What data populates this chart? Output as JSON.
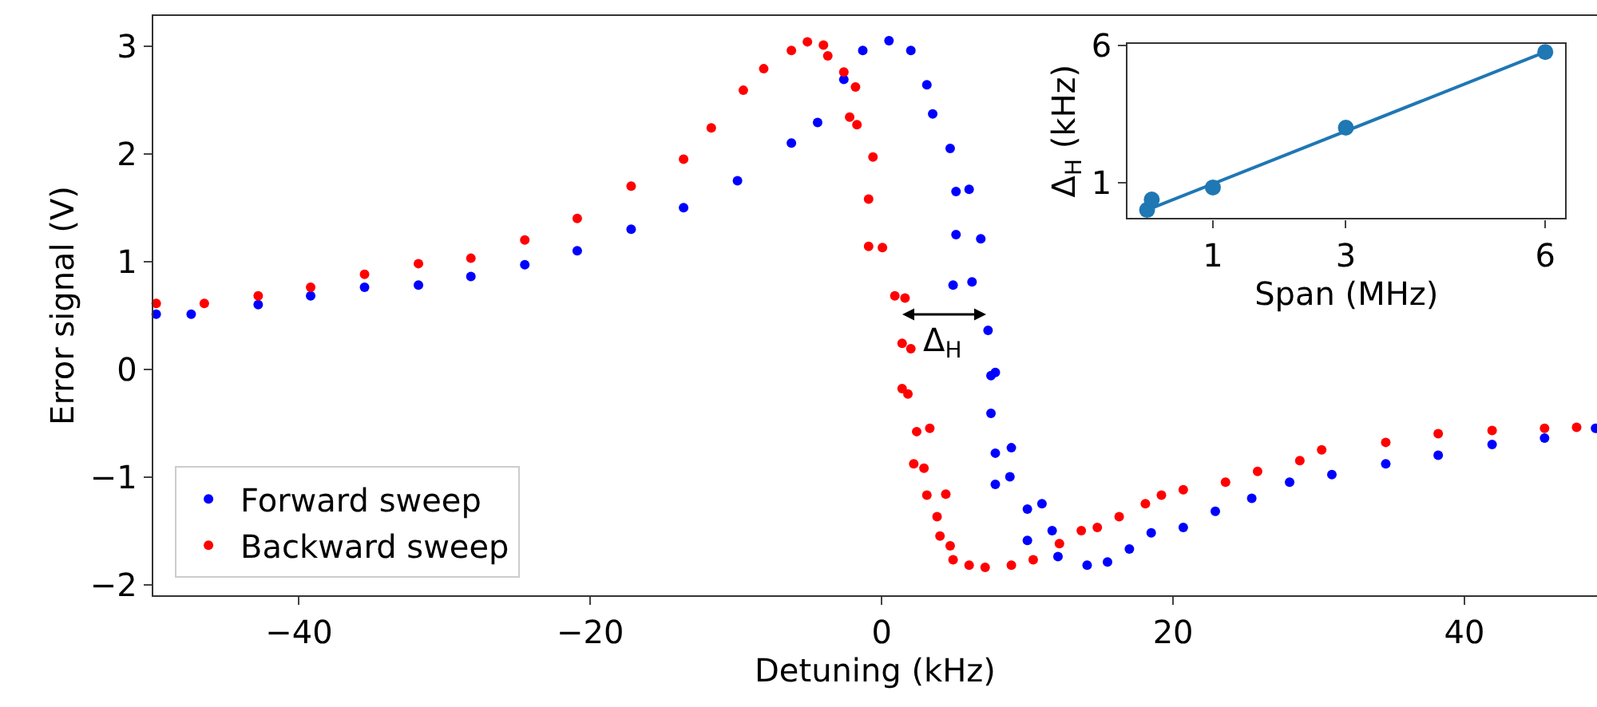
{
  "chart_data": [
    {
      "type": "scatter",
      "xlabel": "Detuning (kHz)",
      "ylabel": "Error signal (V)",
      "xlim": [
        -50,
        49.1
      ],
      "ylim": [
        -2.1,
        3.28
      ],
      "xticks": [
        -40,
        -20,
        0,
        20,
        40
      ],
      "yticks": [
        -2,
        -1,
        0,
        1,
        2,
        3
      ],
      "legend": "bottom left",
      "marker": "circle",
      "annotations": [
        "Δ$_{H}$"
      ],
      "series": [
        {
          "name": "Forward sweep",
          "color": "#0000ff",
          "x": [
            -49.8,
            -47.4,
            -42.8,
            -39.2,
            -35.5,
            -31.8,
            -28.2,
            -24.5,
            -20.9,
            -17.2,
            -13.6,
            -9.9,
            -6.2,
            -4.4,
            -2.6,
            -1.3,
            0.5,
            2.0,
            3.1,
            3.5,
            4.7,
            5.1,
            6.0,
            5.1,
            6.8,
            4.9,
            6.2,
            7.3,
            7.5,
            7.8,
            7.5,
            7.8,
            8.9,
            7.8,
            8.8,
            10.0,
            11.0,
            10.0,
            11.7,
            12.1,
            14.1,
            15.5,
            17.0,
            18.5,
            20.7,
            22.9,
            25.4,
            28.0,
            30.9,
            34.6,
            38.2,
            41.9,
            45.5,
            49.0
          ],
          "values": [
            0.51,
            0.51,
            0.6,
            0.68,
            0.76,
            0.78,
            0.86,
            0.97,
            1.1,
            1.3,
            1.5,
            1.75,
            2.1,
            2.29,
            2.69,
            2.96,
            3.05,
            2.96,
            2.64,
            2.37,
            2.05,
            1.65,
            1.67,
            1.25,
            1.21,
            0.78,
            0.81,
            0.36,
            -0.06,
            -0.03,
            -0.41,
            -0.78,
            -0.73,
            -1.07,
            -1.0,
            -1.3,
            -1.25,
            -1.59,
            -1.5,
            -1.74,
            -1.82,
            -1.79,
            -1.67,
            -1.52,
            -1.47,
            -1.32,
            -1.2,
            -1.05,
            -0.98,
            -0.88,
            -0.8,
            -0.7,
            -0.64,
            -0.55
          ]
        },
        {
          "name": "Backward sweep",
          "color": "#ff0000",
          "x": [
            -49.8,
            -46.5,
            -42.8,
            -39.2,
            -35.5,
            -31.8,
            -28.2,
            -24.5,
            -20.9,
            -17.2,
            -13.6,
            -11.7,
            -9.5,
            -8.1,
            -6.2,
            -5.1,
            -4.0,
            -3.7,
            -2.6,
            -1.8,
            -2.2,
            -1.7,
            -0.6,
            -0.9,
            -0.9,
            0.05,
            0.9,
            1.6,
            1.4,
            2.0,
            1.4,
            1.8,
            2.4,
            3.3,
            2.2,
            2.9,
            3.1,
            4.4,
            3.8,
            4.0,
            4.7,
            4.9,
            6.0,
            7.1,
            8.9,
            10.4,
            12.2,
            13.7,
            14.8,
            16.3,
            18.1,
            19.2,
            20.7,
            23.6,
            25.8,
            28.7,
            30.2,
            34.6,
            38.2,
            41.9,
            45.5,
            47.7
          ],
          "values": [
            0.61,
            0.61,
            0.68,
            0.76,
            0.88,
            0.98,
            1.03,
            1.2,
            1.4,
            1.7,
            1.95,
            2.24,
            2.59,
            2.79,
            2.96,
            3.04,
            3.01,
            2.91,
            2.76,
            2.62,
            2.34,
            2.27,
            1.97,
            1.58,
            1.14,
            1.13,
            0.68,
            0.66,
            0.24,
            0.19,
            -0.18,
            -0.23,
            -0.58,
            -0.55,
            -0.88,
            -0.92,
            -1.17,
            -1.16,
            -1.37,
            -1.55,
            -1.64,
            -1.77,
            -1.82,
            -1.84,
            -1.82,
            -1.77,
            -1.62,
            -1.5,
            -1.47,
            -1.37,
            -1.25,
            -1.17,
            -1.12,
            -1.05,
            -0.95,
            -0.85,
            -0.75,
            -0.68,
            -0.6,
            -0.57,
            -0.55,
            -0.54
          ]
        }
      ]
    },
    {
      "type": "scatter",
      "xlabel": "Span (MHz)",
      "ylabel": "Δ$_{H}$ (kHz)",
      "xlim": [
        -0.28,
        6.3
      ],
      "ylim": [
        -0.3,
        6.06
      ],
      "xticks": [
        1,
        3,
        6
      ],
      "yticks": [
        1,
        6
      ],
      "legend": false,
      "series": [
        {
          "type": "line",
          "color": "#1f77b4",
          "marker": "none",
          "line_style": "solid",
          "x": [
            0.01,
            6
          ],
          "values": [
            0.0,
            5.76
          ]
        },
        {
          "type": "scatter",
          "color": "#1f77b4",
          "marker": "circle",
          "x": [
            0.01,
            0.08,
            1,
            3,
            6
          ],
          "values": [
            0.0,
            0.38,
            0.82,
            3.0,
            5.76
          ]
        }
      ]
    }
  ]
}
